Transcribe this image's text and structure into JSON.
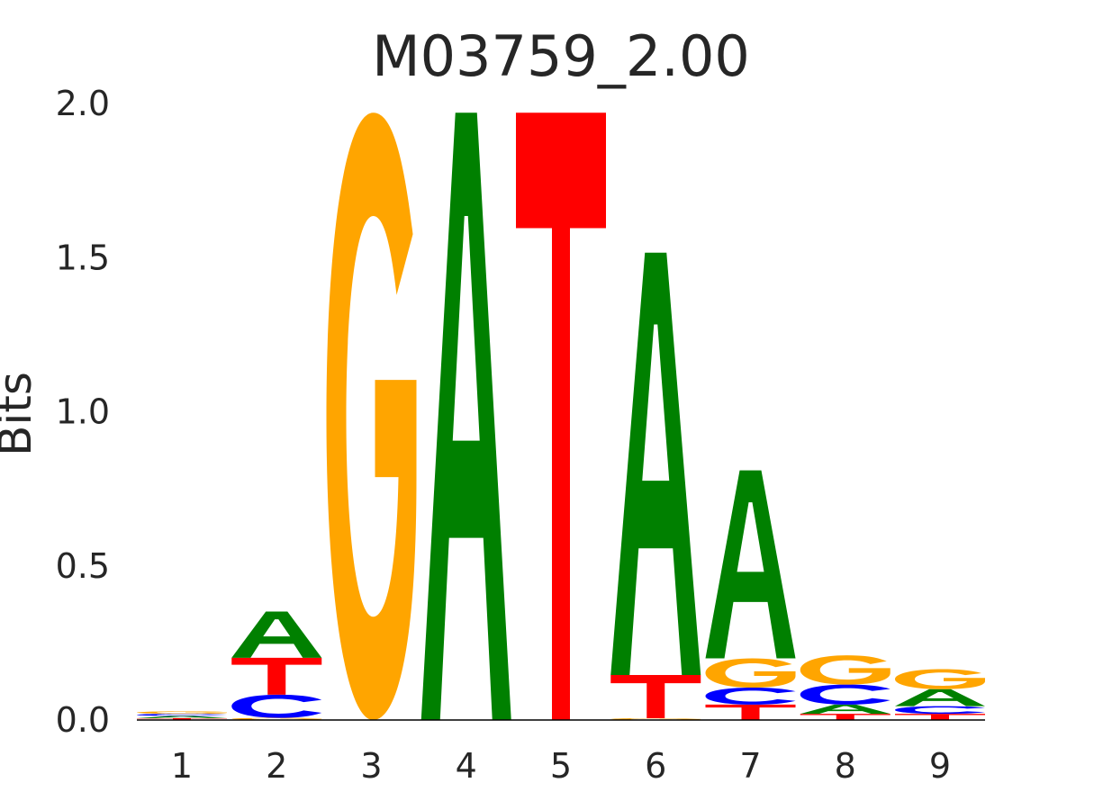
{
  "chart_data": {
    "type": "sequence-logo",
    "title": "M03759_2.00",
    "xlabel": "",
    "ylabel": "Bits",
    "ylim": [
      0,
      2
    ],
    "ytick_labels": [
      "0.0",
      "0.5",
      "1.0",
      "1.5",
      "2.0"
    ],
    "yticks": [
      0,
      0.5,
      1,
      1.5,
      2
    ],
    "positions": [
      "1",
      "2",
      "3",
      "4",
      "5",
      "6",
      "7",
      "8",
      "9"
    ],
    "grid": false,
    "colors": {
      "A": "#008000",
      "C": "#0000ff",
      "G": "#ffa500",
      "T": "#ff0000"
    },
    "stacks": [
      [
        {
          "base": "T",
          "bits": 0.006
        },
        {
          "base": "A",
          "bits": 0.007
        },
        {
          "base": "C",
          "bits": 0.007
        },
        {
          "base": "G",
          "bits": 0.008
        }
      ],
      [
        {
          "base": "G",
          "bits": 0.007
        },
        {
          "base": "C",
          "bits": 0.075
        },
        {
          "base": "T",
          "bits": 0.12
        },
        {
          "base": "A",
          "bits": 0.15
        }
      ],
      [
        {
          "base": "G",
          "bits": 1.97
        }
      ],
      [
        {
          "base": "A",
          "bits": 1.97
        }
      ],
      [
        {
          "base": "T",
          "bits": 1.97
        }
      ],
      [
        {
          "base": "G",
          "bits": 0.006
        },
        {
          "base": "T",
          "bits": 0.14
        },
        {
          "base": "A",
          "bits": 1.37
        }
      ],
      [
        {
          "base": "T",
          "bits": 0.05
        },
        {
          "base": "C",
          "bits": 0.055
        },
        {
          "base": "G",
          "bits": 0.095
        },
        {
          "base": "A",
          "bits": 0.61
        }
      ],
      [
        {
          "base": "T",
          "bits": 0.02
        },
        {
          "base": "A",
          "bits": 0.03
        },
        {
          "base": "C",
          "bits": 0.065
        },
        {
          "base": "G",
          "bits": 0.095
        }
      ],
      [
        {
          "base": "T",
          "bits": 0.02
        },
        {
          "base": "C",
          "bits": 0.025
        },
        {
          "base": "A",
          "bits": 0.055
        },
        {
          "base": "G",
          "bits": 0.065
        }
      ]
    ]
  }
}
